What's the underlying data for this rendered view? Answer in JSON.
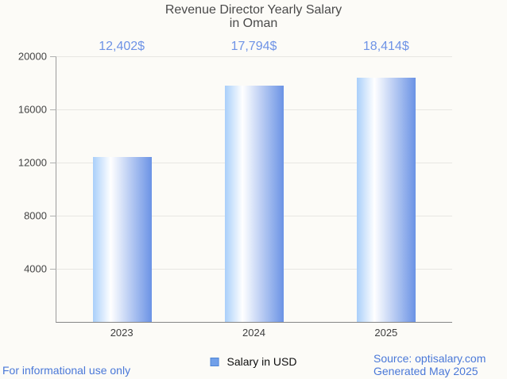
{
  "chart_data": {
    "type": "bar",
    "title_line1": "Revenue Director Yearly Salary",
    "title_line2": "in Oman",
    "categories": [
      "2023",
      "2024",
      "2025"
    ],
    "values": [
      12402,
      17794,
      18414
    ],
    "value_labels": [
      "12,402$",
      "17,794$",
      "18,414$"
    ],
    "ylim": [
      0,
      20000
    ],
    "yticks": [
      20000,
      16000,
      12000,
      8000,
      4000
    ],
    "ytick_labels": [
      "20000",
      "16000",
      "12000",
      "8000",
      "4000"
    ],
    "grid": true,
    "legend_position": "bottom",
    "legend_label": "Salary in USD"
  },
  "footer": {
    "disclaimer": "For informational use only",
    "source": "Source: optisalary.com",
    "generated": "Generated May 2025"
  },
  "colors": {
    "background": "#fcfbf7",
    "title": "#4a4a4a",
    "value_label": "#6e93e6",
    "bar_gradient_left": "#a9cffa",
    "bar_gradient_mid": "#ffffff",
    "bar_gradient_right": "#6b93e5",
    "legend_swatch": "#71a0e9",
    "legend_swatch_border": "#4f86d7",
    "footer_text": "#4a78d8",
    "gridline": "#e8e7e3",
    "axis_line": "#858585"
  }
}
